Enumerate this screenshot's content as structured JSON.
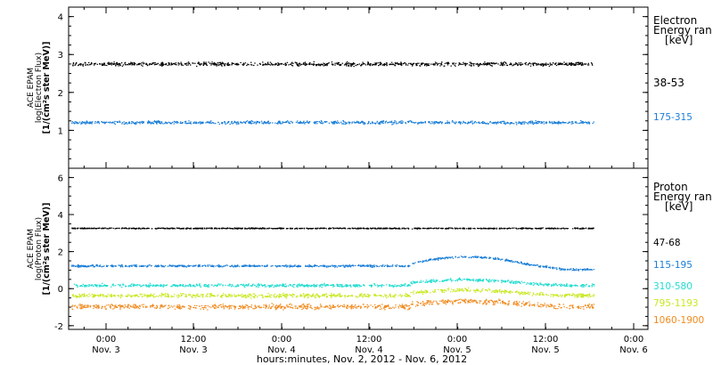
{
  "chart_data": [
    {
      "type": "scatter",
      "ylabel_lines": [
        "ACE EPAM",
        "log(Electron Flux)",
        "[1/(cm²s ster MeV)]"
      ],
      "ylim": [
        0,
        4.25
      ],
      "yticks": [
        1,
        2,
        3,
        4
      ],
      "legend_title": [
        "Electron",
        "Energy ran",
        "[keV]"
      ],
      "series": [
        {
          "name": "38-53",
          "color": "#000000",
          "mean": 2.76,
          "spread": 0.07
        },
        {
          "name": "175-315",
          "color": "#1a7ed8",
          "mean": 1.22,
          "spread": 0.06
        }
      ]
    },
    {
      "type": "scatter",
      "ylabel_lines": [
        "ACE EPAM",
        "log(Proton Flux)",
        "[1/(cm²s ster MeV)]"
      ],
      "ylim": [
        -2.2,
        6.5
      ],
      "yticks": [
        -2,
        0,
        2,
        4,
        6
      ],
      "legend_title": [
        "Proton",
        "Energy ran",
        "[keV]"
      ],
      "series": [
        {
          "name": "47-68",
          "color": "#000000",
          "mean": 3.28,
          "spread": 0.04
        },
        {
          "name": "115-195",
          "color": "#1a7ed8",
          "mean": 1.25,
          "spread": 0.08
        },
        {
          "name": "310-580",
          "color": "#22dcd0",
          "mean": 0.2,
          "spread": 0.12
        },
        {
          "name": "795-1193",
          "color": "#c8e820",
          "mean": -0.35,
          "spread": 0.15
        },
        {
          "name": "1060-1900",
          "color": "#f08a1e",
          "mean": -0.95,
          "spread": 0.2
        }
      ]
    }
  ],
  "x_axis": {
    "tick_labels": [
      [
        "0:00",
        "Nov. 3"
      ],
      [
        "12:00",
        "Nov. 3"
      ],
      [
        "0:00",
        "Nov. 4"
      ],
      [
        "12:00",
        "Nov. 4"
      ],
      [
        "0:00",
        "Nov. 5"
      ],
      [
        "12:00",
        "Nov. 5"
      ],
      [
        "0:00",
        "Nov. 6"
      ]
    ],
    "xlabel": "hours:minutes, Nov.  2, 2012 - Nov.  6, 2012"
  }
}
